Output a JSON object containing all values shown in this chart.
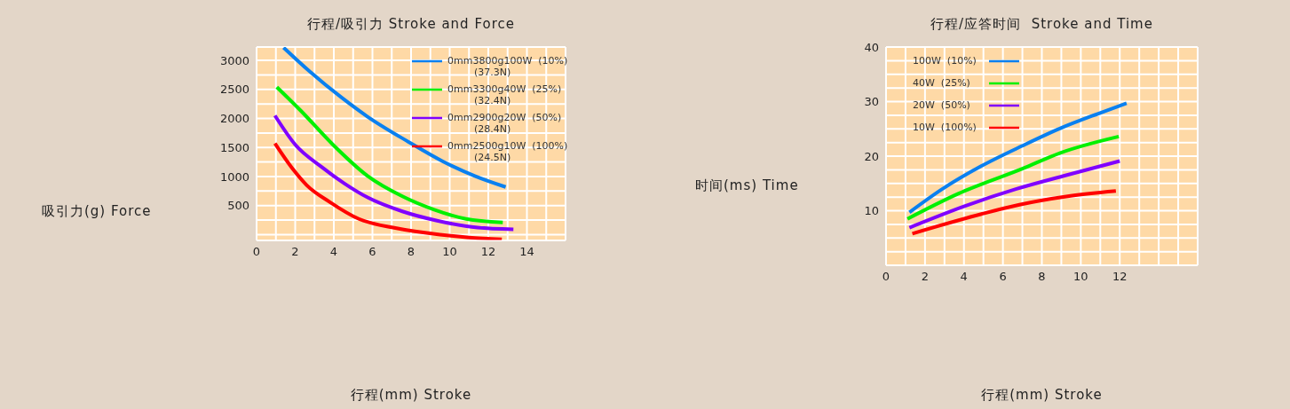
{
  "chart_data": [
    {
      "type": "line",
      "title": "行程/吸引力 Stroke and Force",
      "xlabel": "行程(mm) Stroke",
      "ylabel": "吸引力(g) Force",
      "xlim": [
        0,
        16
      ],
      "ylim": [
        -100,
        3230
      ],
      "xticks": [
        0,
        {
          "value": 1,
          "label": null
        },
        2,
        {
          "value": 3,
          "label": null
        },
        4,
        {
          "value": 5,
          "label": null
        },
        6,
        {
          "value": 7,
          "label": null
        },
        8,
        {
          "value": 9,
          "label": null
        },
        10,
        {
          "value": 11,
          "label": null
        },
        12,
        {
          "value": 13,
          "label": null
        },
        14,
        {
          "value": 15,
          "label": null
        },
        {
          "value": 16,
          "label": null
        }
      ],
      "yticks": [
        {
          "value": 0,
          "label": null
        },
        {
          "value": 250,
          "label": null
        },
        500,
        {
          "value": 750,
          "label": null
        },
        1000,
        {
          "value": 1250,
          "label": null
        },
        1500,
        {
          "value": 1750,
          "label": null
        },
        2000,
        {
          "value": 2250,
          "label": null
        },
        2500,
        {
          "value": 2750,
          "label": null
        },
        3000
      ],
      "grid": true,
      "legend": "top right",
      "marker": "none",
      "line_style": "solid",
      "series": [
        {
          "name": "0mm3800g100W  (10%)",
          "color": "#0a80f0",
          "x": [
            1.4,
            2.75,
            4.4,
            5.75,
            7.85,
            9.65,
            11.3,
            12.9
          ],
          "values": [
            3220,
            2810,
            2360,
            2030,
            1600,
            1260,
            1010,
            820
          ]
        },
        {
          "name": "0mm3300g40W  (25%)",
          "color": "#00f000",
          "x": [
            1.05,
            2.3,
            3.95,
            5.75,
            7.55,
            9.2,
            10.85,
            12.75
          ],
          "values": [
            2540,
            2130,
            1550,
            1010,
            660,
            430,
            270,
            210
          ]
        },
        {
          "name": "0mm2900g20W  (50%)",
          "color": "#8000ff",
          "x": [
            0.95,
            2.0,
            3.35,
            4.55,
            5.75,
            7.55,
            9.35,
            11.45,
            13.3
          ],
          "values": [
            2050,
            1550,
            1170,
            880,
            640,
            400,
            240,
            120,
            90
          ]
        },
        {
          "name": "0mm2500g10W  (100%)",
          "color": "#ff0000",
          "x": [
            0.95,
            1.85,
            2.6,
            3.8,
            5.3,
            7.25,
            9.5,
            11.0,
            12.7
          ],
          "values": [
            1570,
            1140,
            850,
            560,
            270,
            110,
            0,
            -50,
            -80
          ]
        }
      ],
      "annotations": [
        "(37.3N)",
        "(32.4N)",
        "(28.4N)",
        "(24.5N)"
      ]
    },
    {
      "type": "line",
      "title": "行程/应答时间  Stroke and Time",
      "xlabel": "行程(mm) Stroke",
      "ylabel": "时间(ms) Time",
      "xlim": [
        0,
        16
      ],
      "ylim": [
        0,
        40
      ],
      "xticks": [
        0,
        {
          "value": 1,
          "label": null
        },
        2,
        {
          "value": 3,
          "label": null
        },
        4,
        {
          "value": 5,
          "label": null
        },
        6,
        {
          "value": 7,
          "label": null
        },
        8,
        {
          "value": 9,
          "label": null
        },
        10,
        {
          "value": 11,
          "label": null
        },
        12,
        {
          "value": 13,
          "label": null
        },
        {
          "value": 14,
          "label": null
        },
        {
          "value": 15,
          "label": null
        },
        {
          "value": 16,
          "label": null
        }
      ],
      "yticks": [
        {
          "value": 0,
          "label": null
        },
        {
          "value": 2.5,
          "label": null
        },
        {
          "value": 5,
          "label": null
        },
        {
          "value": 7.5,
          "label": null
        },
        10,
        {
          "value": 12.5,
          "label": null
        },
        {
          "value": 15,
          "label": null
        },
        {
          "value": 17.5,
          "label": null
        },
        20,
        {
          "value": 22.5,
          "label": null
        },
        {
          "value": 25,
          "label": null
        },
        {
          "value": 27.5,
          "label": null
        },
        30,
        {
          "value": 32.5,
          "label": null
        },
        {
          "value": 35,
          "label": null
        },
        {
          "value": 37.5,
          "label": null
        },
        40
      ],
      "grid": true,
      "legend": "top left",
      "marker": "none",
      "line_style": "solid",
      "series": [
        {
          "name": "100W  (10%)",
          "color": "#0a80f0",
          "x": [
            1.2,
            2.9,
            4.9,
            7.0,
            8.95,
            10.9,
            12.35
          ],
          "values": [
            9.7,
            14.0,
            18.2,
            21.9,
            25.1,
            27.8,
            29.7
          ]
        },
        {
          "name": "40W  (25%)",
          "color": "#00f000",
          "x": [
            1.1,
            3.7,
            7.0,
            8.95,
            11.95
          ],
          "values": [
            8.5,
            13.1,
            17.7,
            20.6,
            23.6
          ]
        },
        {
          "name": "20W  (50%)",
          "color": "#8000ff",
          "x": [
            1.2,
            4.0,
            6.7,
            9.25,
            12.0
          ],
          "values": [
            6.9,
            10.8,
            14.0,
            16.5,
            19.1
          ]
        },
        {
          "name": "10W  (100%)",
          "color": "#ff0000",
          "x": [
            1.35,
            4.9,
            6.85,
            9.25,
            11.8
          ],
          "values": [
            5.8,
            9.4,
            11.1,
            12.6,
            13.6
          ]
        }
      ]
    }
  ]
}
